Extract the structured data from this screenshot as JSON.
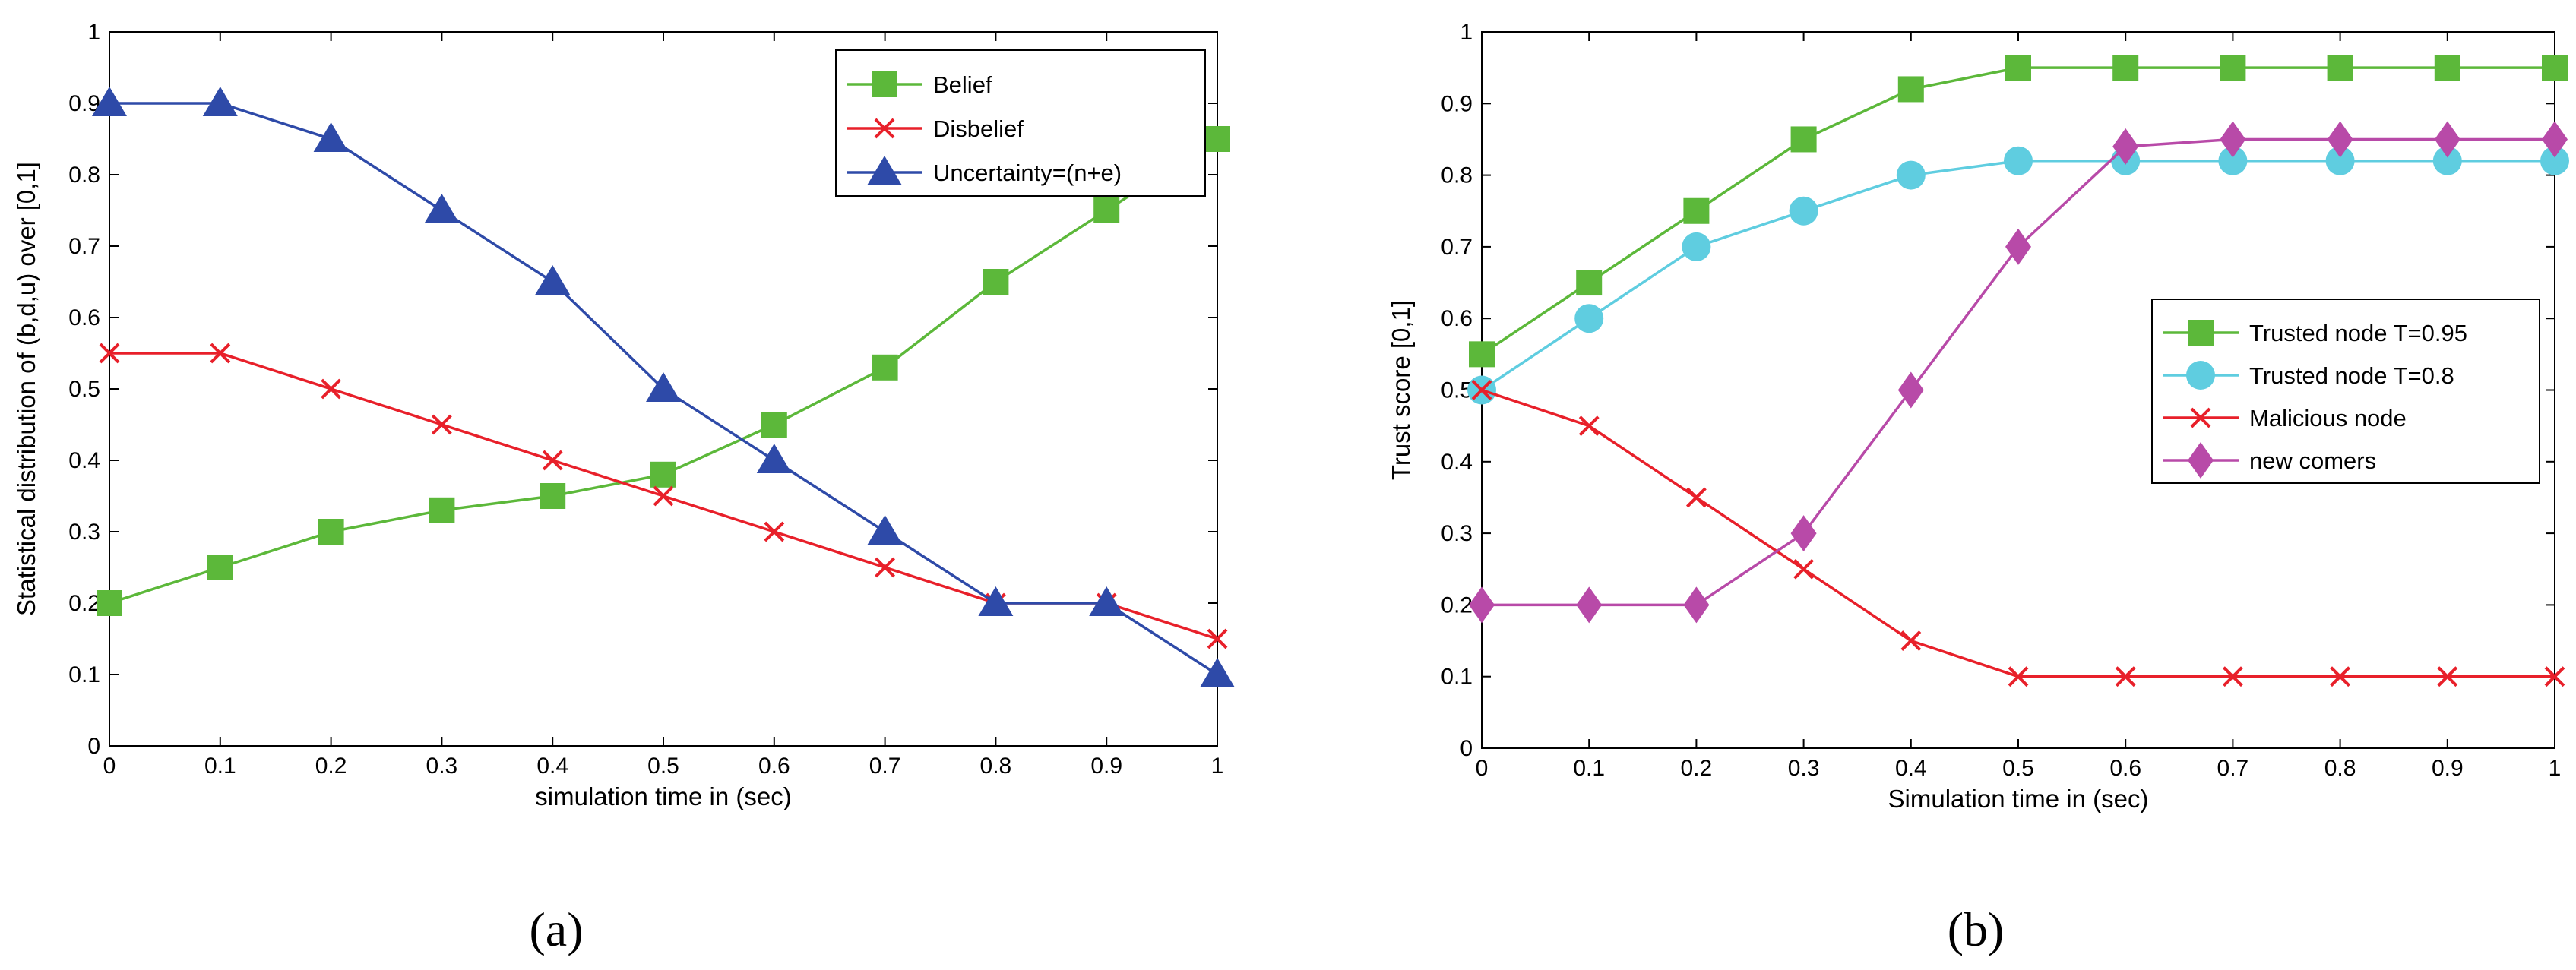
{
  "chart_data": [
    {
      "type": "line",
      "caption": "(a)",
      "xlabel": "simulation time in (sec)",
      "ylabel": "Statistical distribution of (b,d,u) over [0,1]",
      "xlim": [
        0,
        1
      ],
      "ylim": [
        0,
        1
      ],
      "grid": false,
      "legend_position": "top-right",
      "x_ticks": [
        "0",
        "0.1",
        "0.2",
        "0.3",
        "0.4",
        "0.5",
        "0.6",
        "0.7",
        "0.8",
        "0.9",
        "1"
      ],
      "y_ticks": [
        "0",
        "0.1",
        "0.2",
        "0.3",
        "0.4",
        "0.5",
        "0.6",
        "0.7",
        "0.8",
        "0.9",
        "1"
      ],
      "x": [
        0,
        0.1,
        0.2,
        0.3,
        0.4,
        0.5,
        0.6,
        0.7,
        0.8,
        0.9,
        1.0
      ],
      "series": [
        {
          "name": "Belief",
          "color": "#5cb83a",
          "marker": "square",
          "values": [
            0.2,
            0.25,
            0.3,
            0.33,
            0.35,
            0.38,
            0.45,
            0.53,
            0.65,
            0.75,
            0.85
          ]
        },
        {
          "name": "Disbelief",
          "color": "#e8202a",
          "marker": "x",
          "values": [
            0.55,
            0.55,
            0.5,
            0.45,
            0.4,
            0.35,
            0.3,
            0.25,
            0.2,
            0.2,
            0.15
          ]
        },
        {
          "name": "Uncertainty=(n+e)",
          "color": "#2e4aa8",
          "marker": "triangle",
          "values": [
            0.9,
            0.9,
            0.85,
            0.75,
            0.65,
            0.5,
            0.4,
            0.3,
            0.2,
            0.2,
            0.1
          ]
        }
      ]
    },
    {
      "type": "line",
      "caption": "(b)",
      "xlabel": "Simulation time in (sec)",
      "ylabel": "Trust score [0,1]",
      "xlim": [
        0,
        1
      ],
      "ylim": [
        0,
        1
      ],
      "grid": false,
      "legend_position": "center-right",
      "x_ticks": [
        "0",
        "0.1",
        "0.2",
        "0.3",
        "0.4",
        "0.5",
        "0.6",
        "0.7",
        "0.8",
        "0.9",
        "1"
      ],
      "y_ticks": [
        "0",
        "0.1",
        "0.2",
        "0.3",
        "0.4",
        "0.5",
        "0.6",
        "0.7",
        "0.8",
        "0.9",
        "1"
      ],
      "x": [
        0,
        0.1,
        0.2,
        0.3,
        0.4,
        0.5,
        0.6,
        0.7,
        0.8,
        0.9,
        1.0
      ],
      "series": [
        {
          "name": "Trusted node T=0.95",
          "color": "#5cb83a",
          "marker": "square",
          "values": [
            0.55,
            0.65,
            0.75,
            0.85,
            0.92,
            0.95,
            0.95,
            0.95,
            0.95,
            0.95,
            0.95
          ]
        },
        {
          "name": "Trusted node T=0.8",
          "color": "#5fcde0",
          "marker": "circle",
          "values": [
            0.5,
            0.6,
            0.7,
            0.75,
            0.8,
            0.82,
            0.82,
            0.82,
            0.82,
            0.82,
            0.82
          ]
        },
        {
          "name": "Malicious node",
          "color": "#e8202a",
          "marker": "x",
          "values": [
            0.5,
            0.45,
            0.35,
            0.25,
            0.15,
            0.1,
            0.1,
            0.1,
            0.1,
            0.1,
            0.1
          ]
        },
        {
          "name": "new comers",
          "color": "#b84aa8",
          "marker": "diamond",
          "values": [
            0.2,
            0.2,
            0.2,
            0.3,
            0.5,
            0.7,
            0.84,
            0.85,
            0.85,
            0.85,
            0.85
          ]
        }
      ]
    }
  ]
}
